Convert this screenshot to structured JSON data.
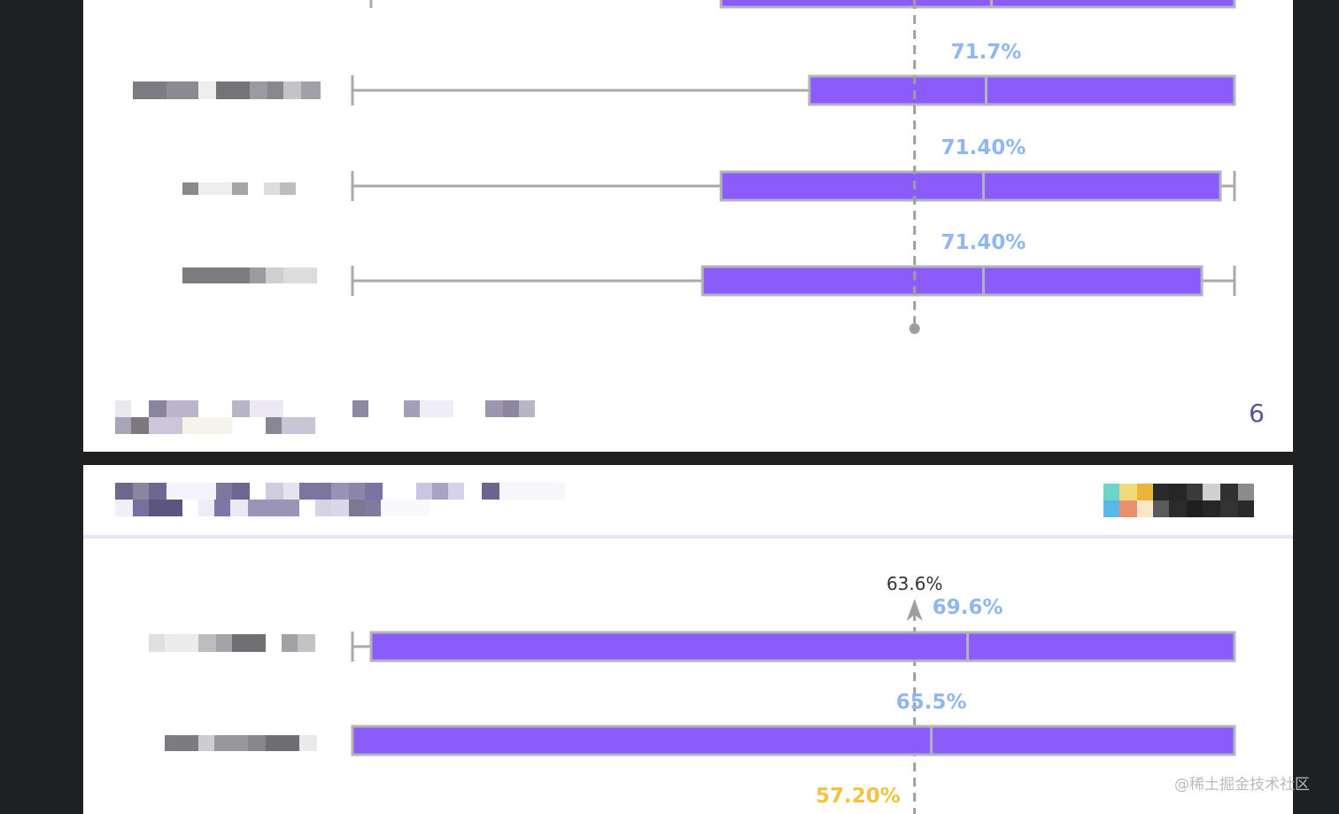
{
  "chart_data": [
    {
      "type": "box",
      "rows": [
        {
          "whisker_low": 2.1,
          "q1": 41.7,
          "median": 72.3,
          "q3": 99.8,
          "whisker_high": 99.8,
          "label": ""
        },
        {
          "whisker_low": 0.0,
          "q1": 51.7,
          "median": 71.7,
          "q3": 99.8,
          "whisker_high": 99.8,
          "label": "71.7%"
        },
        {
          "whisker_low": 0.0,
          "q1": 41.7,
          "median": 71.4,
          "q3": 98.2,
          "whisker_high": 99.8,
          "label": "71.40%"
        },
        {
          "whisker_low": 0.0,
          "q1": 39.6,
          "median": 71.4,
          "q3": 96.1,
          "whisker_high": 99.8,
          "label": "71.40%"
        }
      ],
      "reference_value": 63.6,
      "xlim": [
        0,
        100
      ],
      "page_number": "6"
    },
    {
      "type": "box",
      "rows": [
        {
          "whisker_low": 0.0,
          "q1": 2.1,
          "median": 69.6,
          "q3": 99.8,
          "whisker_high": 99.8,
          "label": "69.6%"
        },
        {
          "whisker_low": 0.0,
          "q1": 0.0,
          "median": 65.5,
          "q3": 99.8,
          "whisker_high": 99.8,
          "label": "65.5%"
        }
      ],
      "reference_value": 63.6,
      "reference_label": "63.6%",
      "extra_label": "57.20%",
      "xlim": [
        0,
        100
      ]
    }
  ],
  "colors": {
    "box_fill": "#8b5cfa",
    "box_stroke": "#b3b3bd",
    "whisker": "#aaaaaa",
    "median_label": "#8fb8f0",
    "extra_label": "#f2c241",
    "reference_line": "#9e9e9e"
  },
  "watermark": "@稀土掘金技术社区"
}
